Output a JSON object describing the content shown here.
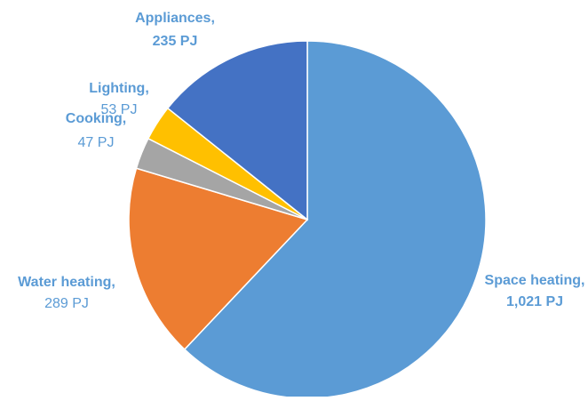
{
  "chart_data": {
    "type": "pie",
    "title": "",
    "slices": [
      {
        "name": "Space heating",
        "name_label": "Space heating,",
        "value": 1021,
        "value_label": "1,021 PJ",
        "color": "#5B9BD5"
      },
      {
        "name": "Water heating",
        "name_label": "Water heating,",
        "value": 289,
        "value_label": "289 PJ",
        "color": "#ED7D31"
      },
      {
        "name": "Cooking",
        "name_label": "Cooking,",
        "value": 47,
        "value_label": "47 PJ",
        "color": "#A5A5A5"
      },
      {
        "name": "Lighting",
        "name_label": "Lighting,",
        "value": 53,
        "value_label": "53 PJ",
        "color": "#FFC000"
      },
      {
        "name": "Appliances",
        "name_label": "Appliances,",
        "value": 235,
        "value_label": "235 PJ",
        "color": "#4472C4"
      }
    ],
    "start_angle_deg": 0,
    "direction": "clockwise",
    "legend": "none",
    "label_color": "#5B9BD5"
  }
}
